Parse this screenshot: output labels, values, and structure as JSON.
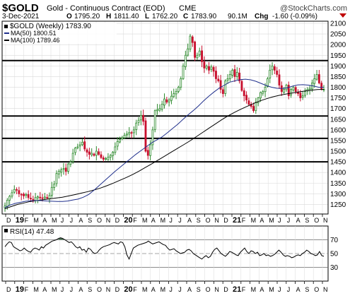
{
  "header": {
    "symbol": "$GOLD",
    "name": "Gold - Continuous Contract (EOD)",
    "exchange": "CME",
    "watermark": "@StockCharts.com",
    "date": "3-Dec-2021",
    "open_label": "O",
    "open": "1795.20",
    "high_label": "H",
    "high": "1811.40",
    "low_label": "L",
    "low": "1762.20",
    "close_label": "C",
    "close": "1783.90",
    "volume": "90.1M",
    "chg_label": "Chg",
    "chg": "-1.60 (-0.09%)"
  },
  "legend": {
    "price": "$GOLD (Weekly) 1783.90",
    "ma50": "MA(50) 1800.51",
    "ma100": "MA(100) 1789.46",
    "rsi": "RSI(14) 47.48"
  },
  "colors": {
    "up": "#2e8b2e",
    "down": "#c8102e",
    "ma50": "#1f2f8c",
    "ma100": "#000000",
    "rsi_fill": "#4f7a5a",
    "chg_down": "#c00000",
    "grid": "#d9d9d9"
  },
  "chart_data": {
    "type": "candlestick",
    "y_ticks": [
      1250,
      1300,
      1350,
      1400,
      1450,
      1500,
      1550,
      1600,
      1650,
      1700,
      1750,
      1800,
      1850,
      1900,
      1950,
      2000,
      2050,
      2100
    ],
    "ylim": [
      1205,
      2110
    ],
    "x_ticks": [
      "D",
      "19",
      "F",
      "M",
      "A",
      "M",
      "J",
      "J",
      "A",
      "S",
      "O",
      "N",
      "D",
      "20",
      "F",
      "M",
      "A",
      "M",
      "J",
      "J",
      "A",
      "S",
      "O",
      "N",
      "D",
      "21",
      "F",
      "M",
      "A",
      "M",
      "J",
      "J",
      "A",
      "S",
      "O",
      "N"
    ],
    "horizontal_lines": [
      1450,
      1560,
      1665,
      1925
    ],
    "close_path": [
      1243,
      1270,
      1288,
      1305,
      1320,
      1318,
      1300,
      1295,
      1290,
      1296,
      1282,
      1276,
      1270,
      1282,
      1286,
      1283,
      1278,
      1285,
      1280,
      1292,
      1330,
      1345,
      1395,
      1405,
      1412,
      1418,
      1405,
      1440,
      1450,
      1490,
      1515,
      1520,
      1530,
      1542,
      1510,
      1495,
      1485,
      1490,
      1480,
      1500,
      1485,
      1470,
      1462,
      1465,
      1472,
      1480,
      1495,
      1520,
      1545,
      1555,
      1565,
      1575,
      1580,
      1588,
      1585,
      1600,
      1632,
      1645,
      1668,
      1640,
      1500,
      1480,
      1530,
      1600,
      1690,
      1695,
      1700,
      1720,
      1745,
      1730,
      1740,
      1758,
      1770,
      1780,
      1800,
      1840,
      1900,
      1950,
      1980,
      2040,
      2010,
      1940,
      1950,
      1970,
      1920,
      1890,
      1900,
      1880,
      1895,
      1875,
      1840,
      1830,
      1790,
      1770,
      1830,
      1840,
      1860,
      1880,
      1850,
      1870,
      1830,
      1785,
      1760,
      1740,
      1720,
      1710,
      1690,
      1730,
      1750,
      1775,
      1780,
      1800,
      1840,
      1880,
      1900,
      1880,
      1860,
      1810,
      1780,
      1790,
      1810,
      1760,
      1790,
      1800,
      1780,
      1770,
      1750,
      1760,
      1780,
      1790,
      1795,
      1820,
      1840,
      1860,
      1820,
      1790,
      1790
    ],
    "ma50": [
      1235,
      1247,
      1255,
      1260,
      1265,
      1267,
      1268,
      1268,
      1266,
      1265,
      1264,
      1264,
      1266,
      1271,
      1275,
      1284,
      1296,
      1316,
      1338,
      1360,
      1382,
      1404,
      1424,
      1444,
      1464,
      1484,
      1502,
      1520,
      1538,
      1552,
      1566,
      1585,
      1605,
      1625,
      1648,
      1670,
      1690,
      1712,
      1736,
      1758,
      1778,
      1796,
      1810,
      1824,
      1830,
      1836,
      1838,
      1835,
      1828,
      1818,
      1808,
      1800,
      1795,
      1794,
      1797,
      1805,
      1811,
      1812,
      1810,
      1806,
      1800,
      1800
    ],
    "ma100": [
      1230,
      1240,
      1250,
      1257,
      1264,
      1268,
      1272,
      1276,
      1280,
      1284,
      1290,
      1296,
      1303,
      1310,
      1318,
      1327,
      1338,
      1350,
      1363,
      1376,
      1390,
      1406,
      1423,
      1440,
      1458,
      1476,
      1494,
      1512,
      1530,
      1548,
      1568,
      1588,
      1608,
      1628,
      1648,
      1666,
      1682,
      1697,
      1711,
      1724,
      1736,
      1746,
      1755,
      1762,
      1768,
      1773,
      1778,
      1782,
      1786,
      1789,
      1790
    ],
    "rsi": {
      "label": "RSI(14)",
      "value": 47.48,
      "ylim": [
        10,
        90
      ],
      "y_ticks": [
        30,
        50,
        70
      ],
      "values": [
        60,
        64,
        67,
        66,
        60,
        58,
        56,
        54,
        55,
        58,
        55,
        53,
        52,
        56,
        58,
        57,
        55,
        60,
        58,
        62,
        64,
        66,
        68,
        69,
        70,
        72,
        73,
        72,
        70,
        68,
        66,
        67,
        64,
        60,
        58,
        60,
        55,
        56,
        52,
        58,
        56,
        52,
        50,
        51,
        55,
        58,
        60,
        61,
        62,
        63,
        65,
        66,
        65,
        64,
        67,
        66,
        60,
        48,
        42,
        50,
        58,
        60,
        62,
        63,
        64,
        65,
        66,
        68,
        66,
        64,
        65,
        66,
        67,
        65,
        63,
        62,
        58,
        55,
        56,
        57,
        54,
        52,
        50,
        51,
        52,
        55,
        56,
        54,
        50,
        48,
        46,
        44,
        42,
        45,
        47,
        44,
        46,
        52,
        56,
        58,
        54,
        50,
        48,
        46,
        49,
        53,
        52,
        50,
        48,
        47,
        52,
        55,
        58,
        53,
        50,
        54,
        53,
        50,
        52,
        47,
        48,
        50,
        47,
        48,
        46,
        47,
        49,
        52,
        55,
        52,
        48,
        46,
        47,
        46,
        44,
        45,
        47,
        48,
        47,
        50,
        52,
        55,
        53,
        50,
        49,
        47,
        48,
        53,
        47,
        46
      ]
    }
  }
}
